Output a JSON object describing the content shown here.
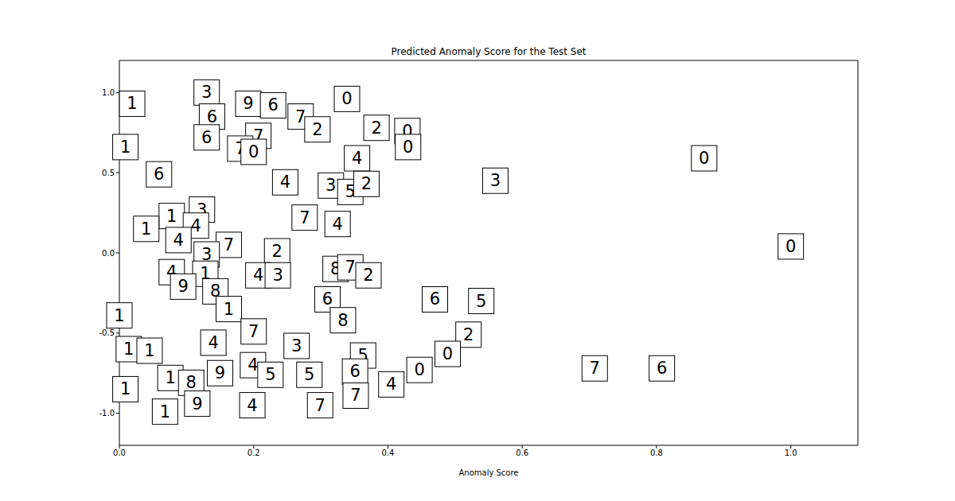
{
  "chart_data": {
    "type": "scatter",
    "title": "Predicted Anomaly Score for the Test Set",
    "x_label": "Anomaly Score",
    "marker": "box",
    "color": "#000000",
    "x": [
      0.019,
      0.009,
      0.059,
      0.13,
      0.138,
      0.13,
      0.192,
      0.229,
      0.27,
      0.295,
      0.207,
      0.18,
      0.2,
      0.339,
      0.383,
      0.429,
      0.43,
      0.354,
      0.247,
      0.315,
      0.344,
      0.368,
      0.56,
      0.871,
      1.0,
      0.123,
      0.078,
      0.114,
      0.04,
      0.088,
      0.276,
      0.325,
      0.163,
      0.13,
      0.235,
      0.078,
      0.128,
      0.207,
      0.236,
      0.095,
      0.143,
      0.163,
      0.322,
      0.344,
      0.371,
      0.31,
      0.333,
      0.47,
      0.539,
      0.0,
      0.52,
      0.489,
      0.2,
      0.14,
      0.264,
      0.014,
      0.045,
      0.363,
      0.447,
      0.405,
      0.708,
      0.808,
      0.076,
      0.15,
      0.199,
      0.225,
      0.283,
      0.351,
      0.352,
      0.107,
      0.009,
      0.116,
      0.198,
      0.299,
      0.068
    ],
    "values": [
      0.93,
      0.66,
      0.49,
      1.0,
      0.85,
      0.72,
      0.93,
      0.92,
      0.85,
      0.77,
      0.73,
      0.65,
      0.63,
      0.96,
      0.78,
      0.76,
      0.66,
      0.59,
      0.44,
      0.42,
      0.38,
      0.43,
      0.45,
      0.59,
      0.04,
      0.27,
      0.23,
      0.17,
      0.15,
      0.08,
      0.22,
      0.18,
      0.05,
      -0.01,
      0.01,
      -0.12,
      -0.13,
      -0.14,
      -0.14,
      -0.21,
      -0.24,
      -0.35,
      -0.1,
      -0.09,
      -0.14,
      -0.29,
      -0.42,
      -0.29,
      -0.3,
      -0.39,
      -0.51,
      -0.63,
      -0.49,
      -0.56,
      -0.58,
      -0.6,
      -0.61,
      -0.64,
      -0.73,
      -0.82,
      -0.72,
      -0.72,
      -0.78,
      -0.75,
      -0.7,
      -0.76,
      -0.76,
      -0.74,
      -0.89,
      -0.81,
      -0.85,
      -0.94,
      -0.95,
      -0.95,
      -0.99
    ],
    "labels": [
      "1",
      "1",
      "6",
      "3",
      "6",
      "6",
      "9",
      "6",
      "7",
      "2",
      "7",
      "7",
      "0",
      "0",
      "2",
      "0",
      "0",
      "4",
      "4",
      "3",
      "5",
      "2",
      "3",
      "0",
      "0",
      "3",
      "1",
      "4",
      "1",
      "4",
      "7",
      "4",
      "7",
      "3",
      "2",
      "4",
      "1",
      "4",
      "3",
      "9",
      "8",
      "1",
      "8",
      "7",
      "2",
      "6",
      "8",
      "6",
      "5",
      "1",
      "2",
      "0",
      "7",
      "4",
      "3",
      "1",
      "1",
      "5",
      "0",
      "4",
      "7",
      "6",
      "1",
      "9",
      "4",
      "5",
      "5",
      "6",
      "7",
      "8",
      "1",
      "9",
      "4",
      "7",
      "1"
    ],
    "xlim": [
      0,
      1.1
    ],
    "ylim": [
      -1.2,
      1.2
    ],
    "xticks": [
      {
        "value": 0,
        "label": "0.0"
      },
      {
        "value": 0.2,
        "label": "0.2"
      },
      {
        "value": 0.4,
        "label": "0.4"
      },
      {
        "value": 0.6,
        "label": "0.6"
      },
      {
        "value": 0.8,
        "label": "0.8"
      },
      {
        "value": 1,
        "label": "1.0"
      }
    ],
    "yticks": [
      {
        "value": -1,
        "label": "-1.0"
      },
      {
        "value": -0.5,
        "label": "-0.5"
      },
      {
        "value": 0,
        "label": "0.0"
      },
      {
        "value": 0.5,
        "label": "0.5"
      },
      {
        "value": 1,
        "label": "1.0"
      }
    ],
    "grid": false
  }
}
